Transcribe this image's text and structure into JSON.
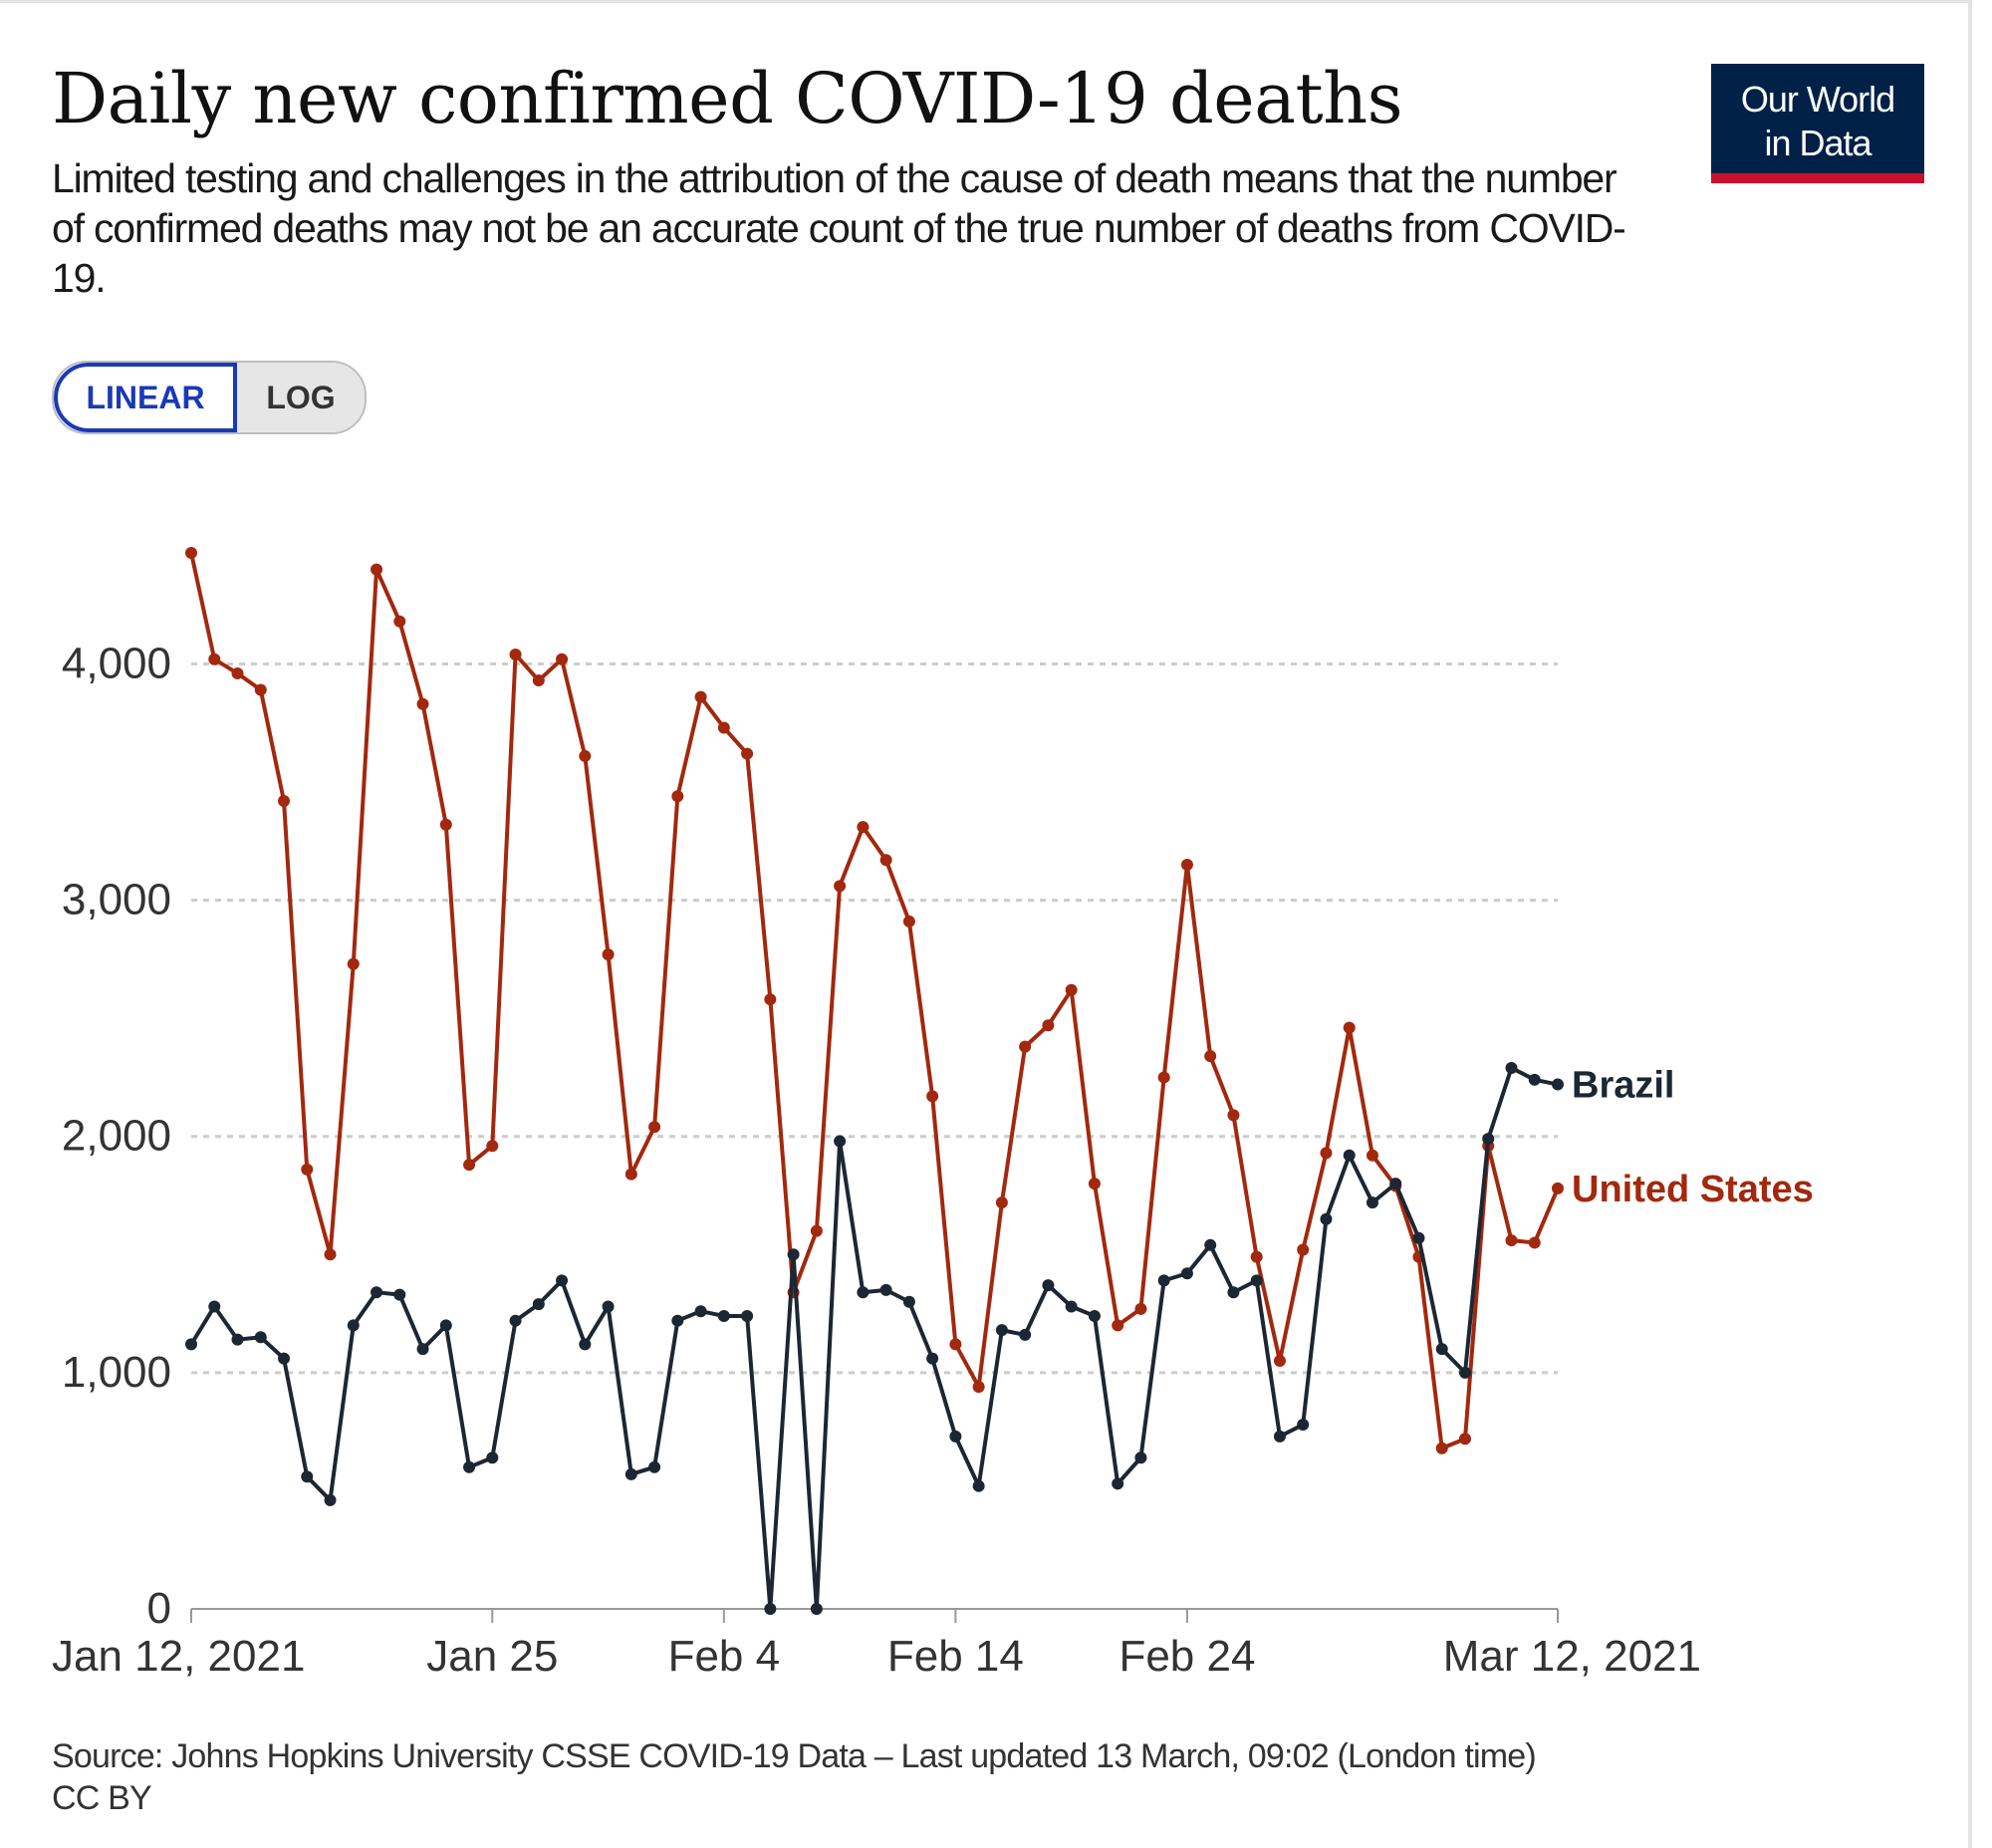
{
  "header": {
    "title": "Daily new confirmed COVID-19 deaths",
    "subtitle": "Limited testing and challenges in the attribution of the cause of death means that the number of confirmed deaths may not be an accurate count of the true number of deaths from COVID-19.",
    "logo_line1": "Our World",
    "logo_line2": "in Data"
  },
  "controls": {
    "linear_label": "LINEAR",
    "log_label": "LOG",
    "selected": "LINEAR"
  },
  "footer": {
    "source": "Source: Johns Hopkins University CSSE COVID-19 Data – Last updated 13 March, 09:02 (London time)",
    "license": "CC BY"
  },
  "colors": {
    "united_states": "#a2280e",
    "brazil": "#1c2733",
    "gridline": "#cccccc"
  },
  "chart_data": {
    "type": "line",
    "title": "Daily new confirmed COVID-19 deaths",
    "xlabel": "",
    "ylabel": "",
    "ylim": [
      0,
      4500
    ],
    "yticks": [
      0,
      1000,
      2000,
      3000,
      4000
    ],
    "ytick_labels": [
      "0",
      "1,000",
      "2,000",
      "3,000",
      "4,000"
    ],
    "x_start": "Jan 12, 2021",
    "x_end": "Mar 12, 2021",
    "n_days": 60,
    "xticks": [
      {
        "day": 0,
        "label": "Jan 12, 2021"
      },
      {
        "day": 13,
        "label": "Jan 25"
      },
      {
        "day": 23,
        "label": "Feb 4"
      },
      {
        "day": 33,
        "label": "Feb 14"
      },
      {
        "day": 43,
        "label": "Feb 24"
      },
      {
        "day": 59,
        "label": "Mar 12, 2021"
      }
    ],
    "grid": true,
    "series": [
      {
        "name": "United States",
        "color": "#a2280e",
        "values": [
          4470,
          4020,
          3960,
          3890,
          3420,
          1860,
          1500,
          2730,
          4400,
          4180,
          3830,
          3320,
          1880,
          1960,
          4040,
          3930,
          4020,
          3610,
          2770,
          1840,
          2040,
          3440,
          3860,
          3730,
          3620,
          2580,
          1340,
          1600,
          3060,
          3310,
          3170,
          2910,
          2170,
          1120,
          940,
          1720,
          2380,
          2470,
          2620,
          1800,
          1200,
          1270,
          2250,
          3150,
          2340,
          2090,
          1490,
          1050,
          1520,
          1930,
          2460,
          1920,
          1790,
          1490,
          680,
          720,
          1960,
          1560,
          1550,
          1780
        ]
      },
      {
        "name": "Brazil",
        "color": "#1c2733",
        "values": [
          1120,
          1280,
          1140,
          1150,
          1060,
          560,
          460,
          1200,
          1340,
          1330,
          1100,
          1200,
          600,
          640,
          1220,
          1290,
          1390,
          1120,
          1280,
          570,
          600,
          1220,
          1260,
          1240,
          1240,
          0,
          1500,
          0,
          1980,
          1340,
          1350,
          1300,
          1060,
          730,
          520,
          1180,
          1160,
          1370,
          1280,
          1240,
          530,
          640,
          1390,
          1420,
          1540,
          1340,
          1390,
          730,
          780,
          1650,
          1920,
          1720,
          1800,
          1570,
          1100,
          1000,
          1990,
          2290,
          2240,
          2220
        ]
      }
    ]
  }
}
